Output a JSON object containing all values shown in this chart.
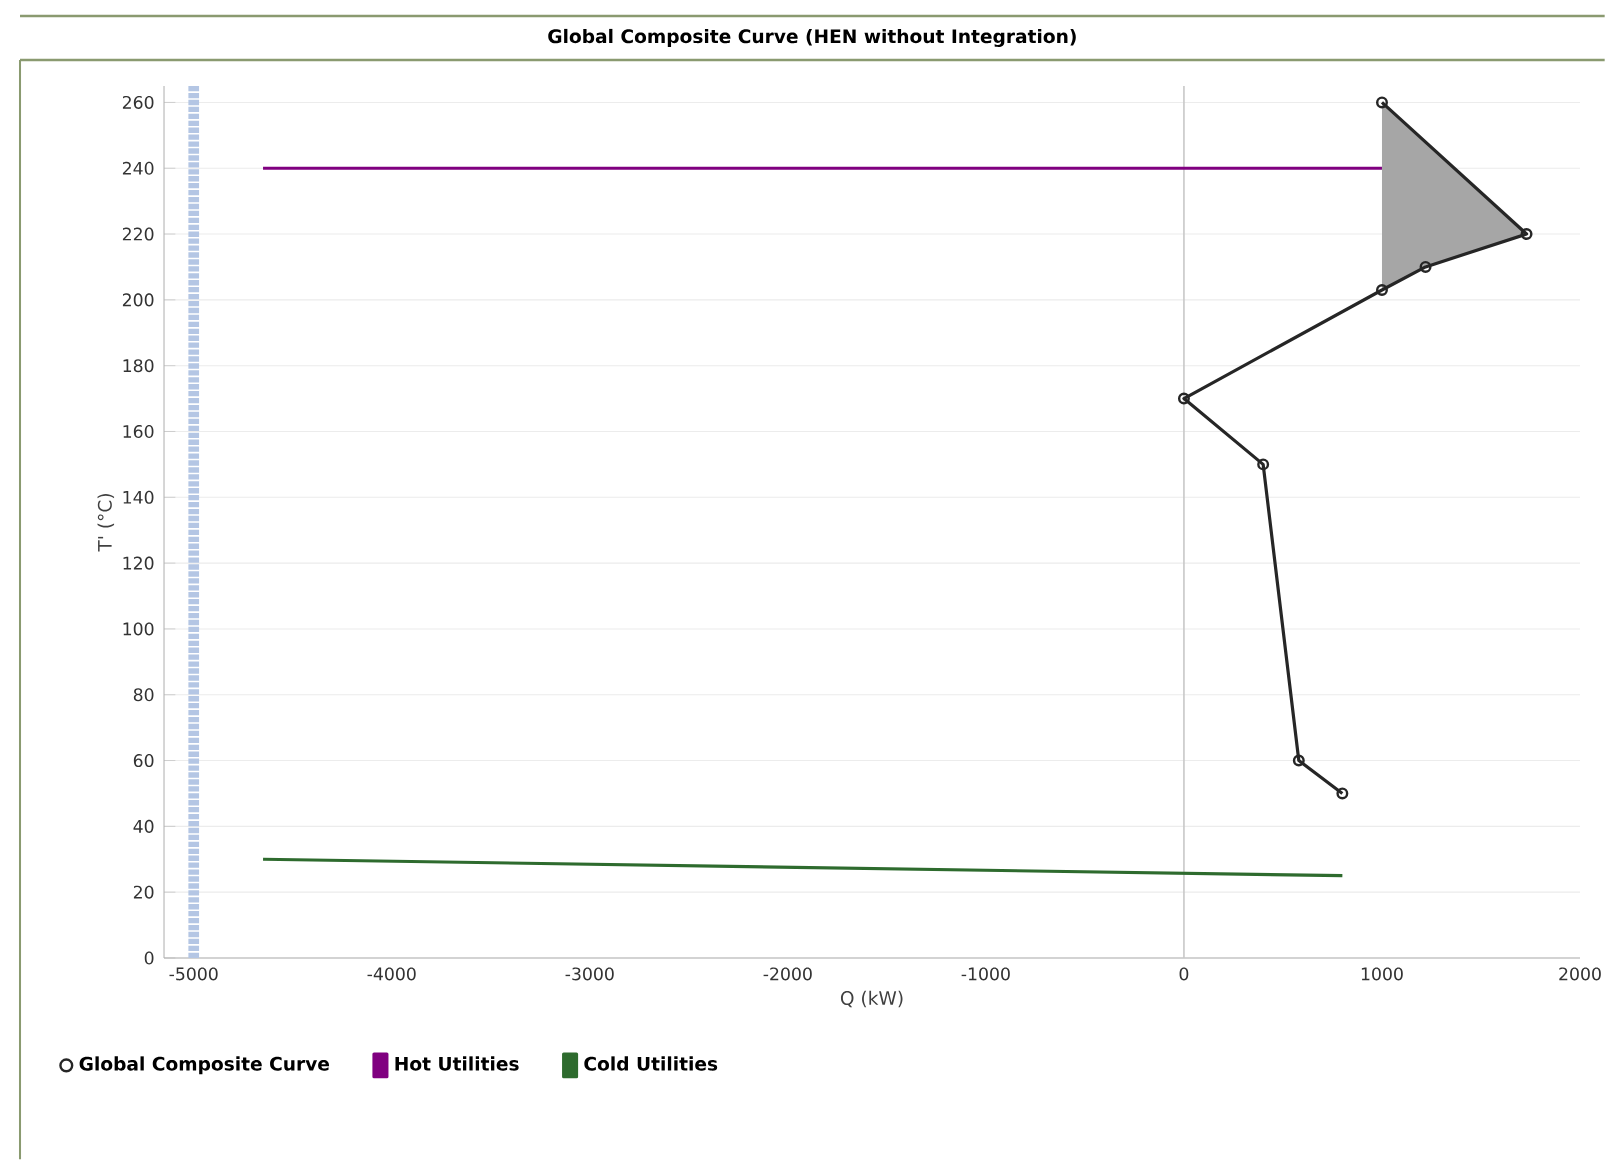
{
  "chart_data": {
    "type": "line",
    "title": "Global Composite Curve (HEN without Integration)",
    "xlabel": "Q (kW)",
    "ylabel": "T' (°C)",
    "xlim": [
      -5150,
      2000
    ],
    "ylim": [
      0,
      265
    ],
    "xticks": [
      -5000,
      -4000,
      -3000,
      -2000,
      -1000,
      0,
      1000,
      2000
    ],
    "yticks": [
      0,
      20,
      40,
      60,
      80,
      100,
      120,
      140,
      160,
      180,
      200,
      220,
      240,
      260
    ],
    "grid": "y",
    "legend": "bottom",
    "ref_lines": [
      {
        "axis": "x",
        "value": 0,
        "color": "#c8c8c8",
        "line_style": "solid"
      },
      {
        "axis": "x",
        "value": -5000,
        "color": "#b4c6e4",
        "line_style": "dashed"
      }
    ],
    "series": [
      {
        "type": "area",
        "color": "#a6a6a6",
        "x": [
          1000,
          1730,
          1220,
          1000
        ],
        "values": [
          260,
          220,
          210,
          203
        ]
      },
      {
        "name": "Hot Utilities",
        "color": "#800080",
        "marker": "none",
        "x": [
          -4650,
          1000
        ],
        "values": [
          240,
          240
        ]
      },
      {
        "name": "Cold Utilities",
        "color": "#2e6b2e",
        "marker": "none",
        "x": [
          -4650,
          800
        ],
        "values": [
          30,
          25
        ]
      },
      {
        "name": "Global Composite Curve",
        "color": "#262626",
        "marker": "circle",
        "x": [
          1000,
          1730,
          1220,
          1000,
          0,
          400,
          580,
          800
        ],
        "values": [
          260,
          220,
          210,
          203,
          170,
          150,
          60,
          50
        ]
      }
    ]
  }
}
